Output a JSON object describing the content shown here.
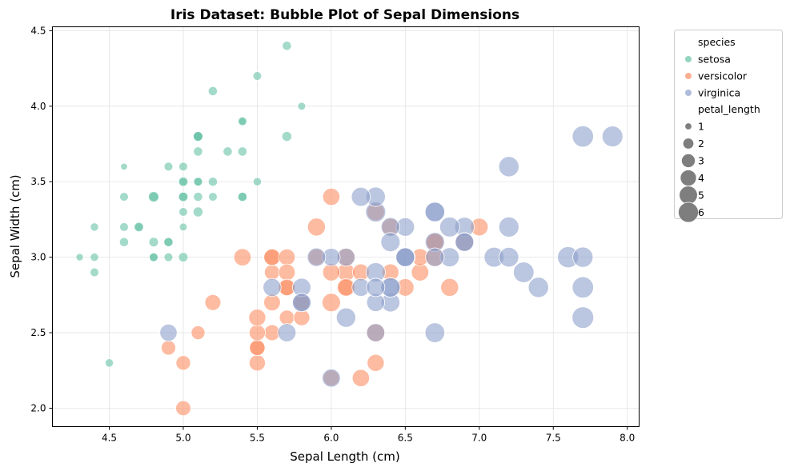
{
  "chart_data": {
    "type": "scatter",
    "title": "Iris Dataset: Bubble Plot of Sepal Dimensions",
    "xlabel": "Sepal Length (cm)",
    "ylabel": "Sepal Width (cm)",
    "xlim": [
      4.116,
      8.08
    ],
    "ylim": [
      1.878,
      4.526
    ],
    "xticks": [
      "4.5",
      "5.0",
      "5.5",
      "6.0",
      "6.5",
      "7.0",
      "7.5",
      "8.0"
    ],
    "yticks": [
      "2.0",
      "2.5",
      "3.0",
      "3.5",
      "4.0",
      "4.5"
    ],
    "grid": true,
    "legend_placement": "outside-top-right",
    "legend": {
      "hue_title": "species",
      "size_title": "petal_length",
      "size_entries": [
        "1",
        "2",
        "3",
        "4",
        "5",
        "6"
      ]
    },
    "point_fields": [
      "sepal_length",
      "sepal_width",
      "petal_length"
    ],
    "series": [
      {
        "name": "setosa",
        "color": "#66c2a5",
        "points": [
          [
            5.1,
            3.5,
            1.4
          ],
          [
            4.9,
            3.0,
            1.4
          ],
          [
            4.7,
            3.2,
            1.3
          ],
          [
            4.6,
            3.1,
            1.5
          ],
          [
            5.0,
            3.6,
            1.4
          ],
          [
            5.4,
            3.9,
            1.7
          ],
          [
            4.6,
            3.4,
            1.4
          ],
          [
            5.0,
            3.4,
            1.5
          ],
          [
            4.4,
            2.9,
            1.4
          ],
          [
            4.9,
            3.1,
            1.5
          ],
          [
            5.4,
            3.7,
            1.5
          ],
          [
            4.8,
            3.4,
            1.6
          ],
          [
            4.8,
            3.0,
            1.4
          ],
          [
            4.3,
            3.0,
            1.1
          ],
          [
            5.8,
            4.0,
            1.2
          ],
          [
            5.7,
            4.4,
            1.5
          ],
          [
            5.4,
            3.9,
            1.3
          ],
          [
            5.1,
            3.5,
            1.4
          ],
          [
            5.7,
            3.8,
            1.7
          ],
          [
            5.1,
            3.8,
            1.5
          ],
          [
            5.4,
            3.4,
            1.7
          ],
          [
            5.1,
            3.7,
            1.5
          ],
          [
            4.6,
            3.6,
            1.0
          ],
          [
            5.1,
            3.3,
            1.7
          ],
          [
            4.8,
            3.4,
            1.9
          ],
          [
            5.0,
            3.0,
            1.6
          ],
          [
            5.0,
            3.4,
            1.6
          ],
          [
            5.2,
            3.5,
            1.5
          ],
          [
            5.2,
            3.4,
            1.4
          ],
          [
            4.7,
            3.2,
            1.6
          ],
          [
            4.8,
            3.1,
            1.6
          ],
          [
            5.4,
            3.4,
            1.5
          ],
          [
            5.2,
            4.1,
            1.5
          ],
          [
            5.5,
            4.2,
            1.4
          ],
          [
            4.9,
            3.1,
            1.5
          ],
          [
            5.0,
            3.2,
            1.2
          ],
          [
            5.5,
            3.5,
            1.3
          ],
          [
            4.9,
            3.6,
            1.4
          ],
          [
            4.4,
            3.0,
            1.3
          ],
          [
            5.1,
            3.4,
            1.5
          ],
          [
            5.0,
            3.5,
            1.3
          ],
          [
            4.5,
            2.3,
            1.3
          ],
          [
            4.4,
            3.2,
            1.3
          ],
          [
            5.0,
            3.5,
            1.6
          ],
          [
            5.1,
            3.8,
            1.9
          ],
          [
            4.8,
            3.0,
            1.4
          ],
          [
            5.1,
            3.8,
            1.6
          ],
          [
            4.6,
            3.2,
            1.4
          ],
          [
            5.3,
            3.7,
            1.5
          ],
          [
            5.0,
            3.3,
            1.4
          ]
        ]
      },
      {
        "name": "versicolor",
        "color": "#fc8d62",
        "points": [
          [
            7.0,
            3.2,
            4.7
          ],
          [
            6.4,
            3.2,
            4.5
          ],
          [
            6.9,
            3.1,
            4.9
          ],
          [
            5.5,
            2.3,
            4.0
          ],
          [
            6.5,
            2.8,
            4.6
          ],
          [
            5.7,
            2.8,
            4.5
          ],
          [
            6.3,
            3.3,
            4.7
          ],
          [
            4.9,
            2.4,
            3.3
          ],
          [
            6.6,
            2.9,
            4.6
          ],
          [
            5.2,
            2.7,
            3.9
          ],
          [
            5.0,
            2.0,
            3.5
          ],
          [
            5.9,
            3.0,
            4.2
          ],
          [
            6.0,
            2.2,
            4.0
          ],
          [
            6.1,
            2.9,
            4.7
          ],
          [
            5.6,
            2.9,
            3.6
          ],
          [
            6.7,
            3.1,
            4.4
          ],
          [
            5.6,
            3.0,
            4.5
          ],
          [
            5.8,
            2.7,
            4.1
          ],
          [
            6.2,
            2.2,
            4.5
          ],
          [
            5.6,
            2.5,
            3.9
          ],
          [
            5.9,
            3.2,
            4.8
          ],
          [
            6.1,
            2.8,
            4.0
          ],
          [
            6.3,
            2.5,
            4.9
          ],
          [
            6.1,
            2.8,
            4.7
          ],
          [
            6.4,
            2.9,
            4.3
          ],
          [
            6.6,
            3.0,
            4.4
          ],
          [
            6.8,
            2.8,
            4.8
          ],
          [
            6.7,
            3.0,
            5.0
          ],
          [
            6.0,
            2.9,
            4.5
          ],
          [
            5.7,
            2.6,
            3.5
          ],
          [
            5.5,
            2.4,
            3.8
          ],
          [
            5.5,
            2.4,
            3.7
          ],
          [
            5.8,
            2.7,
            3.9
          ],
          [
            6.0,
            2.7,
            5.1
          ],
          [
            5.4,
            3.0,
            4.5
          ],
          [
            6.0,
            3.4,
            4.5
          ],
          [
            6.7,
            3.1,
            4.7
          ],
          [
            6.3,
            2.3,
            4.4
          ],
          [
            5.6,
            3.0,
            4.1
          ],
          [
            5.5,
            2.5,
            4.0
          ],
          [
            5.5,
            2.6,
            4.4
          ],
          [
            6.1,
            3.0,
            4.6
          ],
          [
            5.8,
            2.6,
            4.0
          ],
          [
            5.0,
            2.3,
            3.3
          ],
          [
            5.6,
            2.7,
            4.2
          ],
          [
            5.7,
            3.0,
            4.2
          ],
          [
            5.7,
            2.9,
            4.2
          ],
          [
            6.2,
            2.9,
            4.3
          ],
          [
            5.1,
            2.5,
            3.0
          ],
          [
            5.7,
            2.8,
            4.1
          ]
        ]
      },
      {
        "name": "virginica",
        "color": "#8da0cb",
        "points": [
          [
            6.3,
            3.3,
            6.0
          ],
          [
            5.8,
            2.7,
            5.1
          ],
          [
            7.1,
            3.0,
            5.9
          ],
          [
            6.3,
            2.9,
            5.6
          ],
          [
            6.5,
            3.0,
            5.8
          ],
          [
            7.6,
            3.0,
            6.6
          ],
          [
            4.9,
            2.5,
            4.5
          ],
          [
            7.3,
            2.9,
            6.3
          ],
          [
            6.7,
            2.5,
            5.8
          ],
          [
            7.2,
            3.6,
            6.1
          ],
          [
            6.5,
            3.2,
            5.1
          ],
          [
            6.4,
            2.7,
            5.3
          ],
          [
            6.8,
            3.0,
            5.5
          ],
          [
            5.7,
            2.5,
            5.0
          ],
          [
            5.8,
            2.8,
            5.1
          ],
          [
            6.4,
            3.2,
            5.3
          ],
          [
            6.5,
            3.0,
            5.5
          ],
          [
            7.7,
            3.8,
            6.7
          ],
          [
            7.7,
            2.6,
            6.9
          ],
          [
            6.0,
            2.2,
            5.0
          ],
          [
            6.9,
            3.2,
            5.7
          ],
          [
            5.6,
            2.8,
            4.9
          ],
          [
            7.7,
            2.8,
            6.7
          ],
          [
            6.3,
            2.7,
            4.9
          ],
          [
            6.7,
            3.3,
            5.7
          ],
          [
            7.2,
            3.2,
            6.0
          ],
          [
            6.2,
            2.8,
            4.8
          ],
          [
            6.1,
            3.0,
            4.9
          ],
          [
            6.4,
            2.8,
            5.6
          ],
          [
            7.2,
            3.0,
            5.8
          ],
          [
            7.4,
            2.8,
            6.1
          ],
          [
            7.9,
            3.8,
            6.4
          ],
          [
            6.4,
            2.8,
            5.6
          ],
          [
            6.3,
            2.8,
            5.1
          ],
          [
            6.1,
            2.6,
            5.6
          ],
          [
            7.7,
            3.0,
            6.1
          ],
          [
            6.3,
            3.4,
            5.6
          ],
          [
            6.4,
            3.1,
            5.5
          ],
          [
            6.0,
            3.0,
            4.8
          ],
          [
            6.9,
            3.1,
            5.4
          ],
          [
            6.7,
            3.1,
            5.6
          ],
          [
            6.9,
            3.1,
            5.1
          ],
          [
            5.8,
            2.7,
            5.1
          ],
          [
            6.8,
            3.2,
            5.9
          ],
          [
            6.7,
            3.3,
            5.7
          ],
          [
            6.7,
            3.0,
            5.2
          ],
          [
            6.3,
            2.5,
            5.0
          ],
          [
            6.5,
            3.0,
            5.2
          ],
          [
            6.2,
            3.4,
            5.4
          ],
          [
            5.9,
            3.0,
            5.1
          ]
        ]
      }
    ]
  }
}
